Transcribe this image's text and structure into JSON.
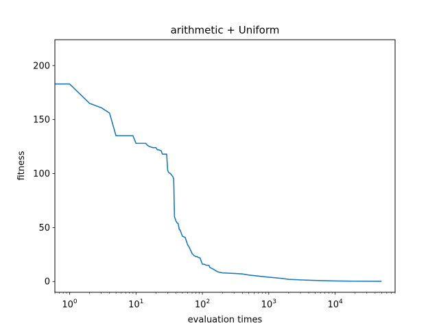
{
  "chart_data": {
    "type": "line",
    "title": "arithmetic + Uniform",
    "xlabel": "evaluation times",
    "ylabel": "fitness",
    "xscale": "log",
    "xlim": [
      0.6,
      80000
    ],
    "ylim": [
      -10,
      224
    ],
    "grid": false,
    "legend": "none",
    "line_color": "#1f77b4",
    "x_ticks": [
      {
        "value": 1,
        "base": "10",
        "exp": "0"
      },
      {
        "value": 10,
        "base": "10",
        "exp": "1"
      },
      {
        "value": 100,
        "base": "10",
        "exp": "2"
      },
      {
        "value": 1000,
        "base": "10",
        "exp": "3"
      },
      {
        "value": 10000,
        "base": "10",
        "exp": "4"
      }
    ],
    "y_ticks": [
      {
        "value": 0,
        "label": "0"
      },
      {
        "value": 50,
        "label": "50"
      },
      {
        "value": 100,
        "label": "100"
      },
      {
        "value": 150,
        "label": "150"
      },
      {
        "value": 200,
        "label": "200"
      }
    ],
    "series": [
      {
        "x": [
          0.6,
          1,
          2,
          3,
          4,
          5,
          6,
          8,
          9,
          10,
          11,
          14,
          15,
          16,
          18,
          20,
          21,
          22,
          24,
          25,
          29,
          30,
          31,
          33,
          35,
          36,
          37,
          38,
          40,
          42,
          43,
          45,
          46,
          50,
          54,
          55,
          60,
          63,
          70,
          75,
          80,
          84,
          88,
          92,
          100,
          106,
          115,
          125,
          130,
          140,
          150,
          170,
          200,
          300,
          400,
          500,
          700,
          1000,
          1500,
          2000,
          3000,
          5000,
          10000,
          20000,
          50000
        ],
        "y": [
          183,
          183,
          165,
          161,
          156,
          135,
          135,
          135,
          135,
          128,
          128,
          128,
          126,
          125,
          124,
          124,
          122,
          122,
          121,
          118,
          118,
          103,
          101,
          100,
          98,
          97,
          95,
          60,
          56,
          54,
          54,
          48,
          48,
          42,
          41,
          41,
          34,
          32,
          26,
          24,
          23,
          23,
          22,
          22,
          16,
          16,
          15,
          15,
          13,
          12,
          11,
          9,
          8,
          7.5,
          7,
          6,
          5,
          4,
          3,
          2,
          1.5,
          1,
          0.5,
          0.3,
          0.2
        ]
      }
    ]
  }
}
